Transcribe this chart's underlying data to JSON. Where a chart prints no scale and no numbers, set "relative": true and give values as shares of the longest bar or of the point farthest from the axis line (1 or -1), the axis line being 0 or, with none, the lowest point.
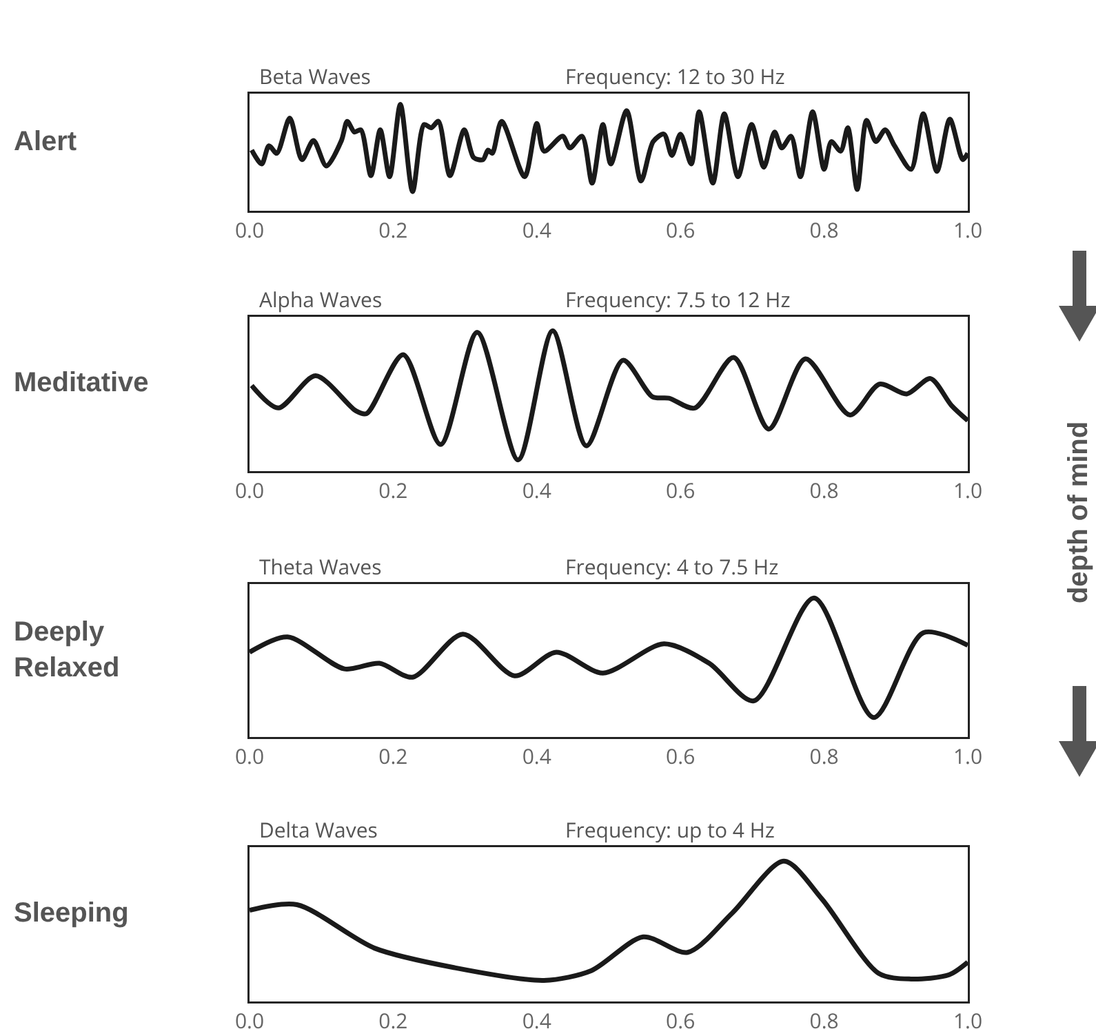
{
  "chart_data": [
    {
      "type": "line",
      "title": "Beta Waves",
      "subtitle": "Frequency: 12 to 30 Hz",
      "ylabel": "Alert",
      "relative": true,
      "xlim": [
        0,
        1
      ],
      "xticks": [
        {
          "value": 0,
          "label": "0.0"
        },
        {
          "value": 0.2,
          "label": "0.2"
        },
        {
          "value": 0.4,
          "label": "0.4"
        },
        {
          "value": 0.6,
          "label": "0.6"
        },
        {
          "value": 0.8,
          "label": "0.8"
        },
        {
          "value": 1,
          "label": "1.0"
        }
      ],
      "tick_labels": "x",
      "grid": false,
      "series": [
        {
          "color": "#1a1a1a",
          "x": [
            0.003,
            0.017,
            0.027,
            0.038,
            0.056,
            0.073,
            0.089,
            0.107,
            0.128,
            0.136,
            0.146,
            0.155,
            0.169,
            0.182,
            0.195,
            0.21,
            0.227,
            0.243,
            0.253,
            0.263,
            0.279,
            0.299,
            0.312,
            0.325,
            0.332,
            0.338,
            0.351,
            0.383,
            0.4,
            0.41,
            0.436,
            0.446,
            0.463,
            0.477,
            0.492,
            0.503,
            0.525,
            0.545,
            0.562,
            0.577,
            0.588,
            0.6,
            0.615,
            0.626,
            0.645,
            0.661,
            0.68,
            0.699,
            0.716,
            0.731,
            0.741,
            0.754,
            0.767,
            0.784,
            0.8,
            0.81,
            0.823,
            0.833,
            0.846,
            0.859,
            0.872,
            0.885,
            0.898,
            0.921,
            0.938,
            0.957,
            0.975,
            0.993,
            1.0
          ],
          "values": [
            0.57,
            0.44,
            0.61,
            0.54,
            0.87,
            0.48,
            0.66,
            0.42,
            0.66,
            0.84,
            0.74,
            0.76,
            0.33,
            0.76,
            0.32,
            1.0,
            0.18,
            0.81,
            0.78,
            0.84,
            0.33,
            0.76,
            0.5,
            0.48,
            0.57,
            0.54,
            0.84,
            0.32,
            0.82,
            0.56,
            0.7,
            0.59,
            0.7,
            0.26,
            0.81,
            0.44,
            0.94,
            0.28,
            0.65,
            0.72,
            0.52,
            0.72,
            0.44,
            0.93,
            0.26,
            0.91,
            0.32,
            0.81,
            0.41,
            0.74,
            0.59,
            0.7,
            0.32,
            0.93,
            0.39,
            0.65,
            0.56,
            0.78,
            0.2,
            0.85,
            0.65,
            0.76,
            0.61,
            0.39,
            0.91,
            0.37,
            0.86,
            0.48,
            0.54
          ]
        }
      ]
    },
    {
      "type": "line",
      "title": "Alpha Waves",
      "subtitle": "Frequency: 7.5 to 12 Hz",
      "ylabel": "Meditative",
      "relative": true,
      "xlim": [
        0,
        1
      ],
      "xticks": [
        {
          "value": 0,
          "label": "0.0"
        },
        {
          "value": 0.2,
          "label": "0.2"
        },
        {
          "value": 0.4,
          "label": "0.4"
        },
        {
          "value": 0.6,
          "label": "0.6"
        },
        {
          "value": 0.8,
          "label": "0.8"
        },
        {
          "value": 1,
          "label": "1.0"
        }
      ],
      "tick_labels": "x",
      "grid": false,
      "annotations": [
        "depth of mind"
      ],
      "series": [
        {
          "color": "#1a1a1a",
          "x": [
            0.003,
            0.04,
            0.092,
            0.148,
            0.163,
            0.214,
            0.266,
            0.317,
            0.374,
            0.422,
            0.469,
            0.52,
            0.561,
            0.584,
            0.62,
            0.674,
            0.723,
            0.774,
            0.836,
            0.877,
            0.915,
            0.948,
            0.977,
            1.0
          ],
          "values": [
            0.61,
            0.45,
            0.68,
            0.43,
            0.41,
            0.83,
            0.19,
            0.99,
            0.08,
            1.0,
            0.18,
            0.79,
            0.53,
            0.52,
            0.45,
            0.81,
            0.3,
            0.8,
            0.4,
            0.62,
            0.55,
            0.66,
            0.47,
            0.36
          ]
        }
      ]
    },
    {
      "type": "line",
      "title": "Theta Waves",
      "subtitle": "Frequency: 4 to 7.5 Hz",
      "ylabel": "Deeply Relaxed",
      "relative": true,
      "xlim": [
        0,
        1
      ],
      "xticks": [
        {
          "value": 0,
          "label": "0.0"
        },
        {
          "value": 0.2,
          "label": "0.2"
        },
        {
          "value": 0.4,
          "label": "0.4"
        },
        {
          "value": 0.6,
          "label": "0.6"
        },
        {
          "value": 0.8,
          "label": "0.8"
        },
        {
          "value": 1,
          "label": "1.0"
        }
      ],
      "tick_labels": "x",
      "grid": false,
      "series": [
        {
          "color": "#1a1a1a",
          "x": [
            0.0,
            0.053,
            0.132,
            0.181,
            0.227,
            0.297,
            0.369,
            0.427,
            0.492,
            0.577,
            0.64,
            0.702,
            0.786,
            0.869,
            0.938,
            1.0
          ],
          "values": [
            0.61,
            0.72,
            0.49,
            0.53,
            0.43,
            0.74,
            0.44,
            0.61,
            0.46,
            0.67,
            0.53,
            0.26,
            1.0,
            0.14,
            0.75,
            0.66
          ]
        }
      ]
    },
    {
      "type": "line",
      "title": "Delta Waves",
      "subtitle": "Frequency: up to 4 Hz",
      "ylabel": "Sleeping",
      "relative": true,
      "xlim": [
        0,
        1
      ],
      "xticks": [
        {
          "value": 0,
          "label": "0.0"
        },
        {
          "value": 0.2,
          "label": "0.2"
        },
        {
          "value": 0.4,
          "label": "0.4"
        },
        {
          "value": 0.6,
          "label": "0.6"
        },
        {
          "value": 0.8,
          "label": "0.8"
        },
        {
          "value": 1,
          "label": "1.0"
        }
      ],
      "tick_labels": "x",
      "grid": false,
      "series": [
        {
          "color": "#1a1a1a",
          "x": [
            0.0,
            0.066,
            0.174,
            0.286,
            0.41,
            0.476,
            0.548,
            0.61,
            0.672,
            0.744,
            0.797,
            0.876,
            0.921,
            0.974,
            1.0
          ],
          "values": [
            0.65,
            0.69,
            0.38,
            0.24,
            0.15,
            0.22,
            0.46,
            0.35,
            0.63,
            1.0,
            0.73,
            0.2,
            0.16,
            0.19,
            0.28
          ]
        }
      ]
    }
  ]
}
